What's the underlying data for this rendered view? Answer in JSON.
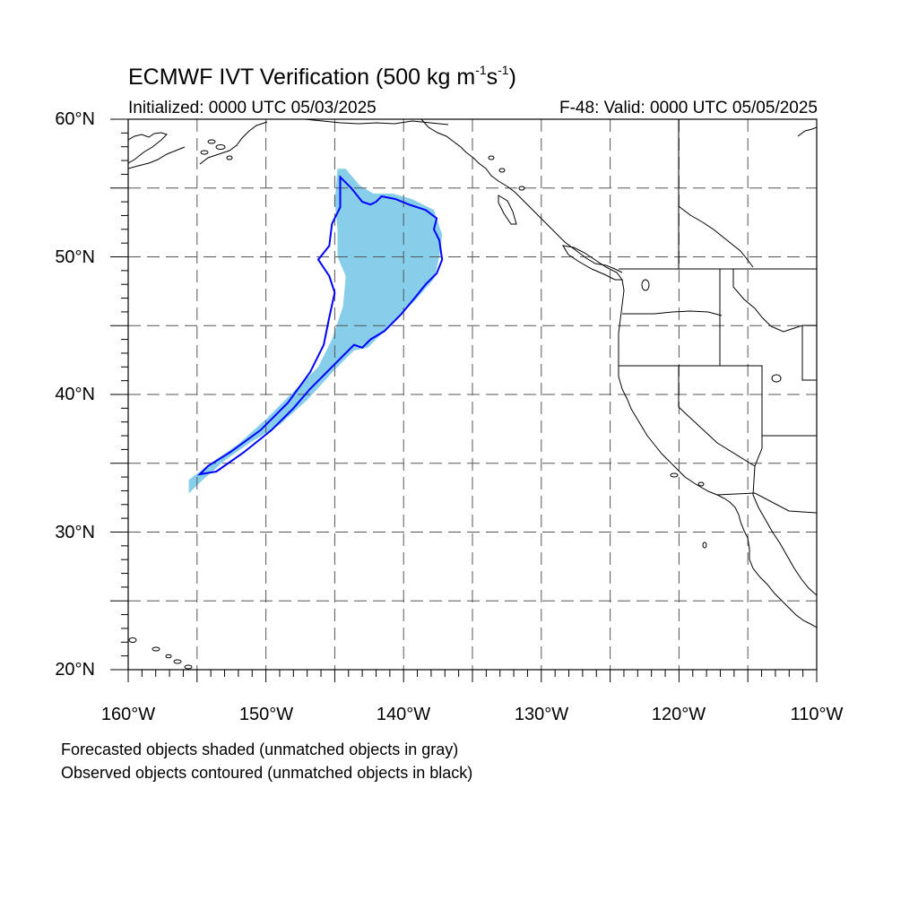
{
  "title": {
    "main": "ECMWF IVT Verification (500 kg m",
    "exp1": "-1",
    "mid": "s",
    "exp2": "-1",
    "close": ")"
  },
  "subtitle": {
    "left": "Initialized: 0000 UTC 05/03/2025",
    "right": "F-48: Valid: 0000 UTC 05/05/2025"
  },
  "map": {
    "projection": "lat-lon",
    "lon_range": [
      -160,
      -110
    ],
    "lat_range": [
      20,
      60
    ],
    "lat_labels": [
      "60°N",
      "50°N",
      "40°N",
      "30°N",
      "20°N"
    ],
    "lon_labels": [
      "160°W",
      "150°W",
      "140°W",
      "130°W",
      "120°W",
      "110°W"
    ],
    "gridlines": "dashed every 5°",
    "colors": {
      "forecast_fill": "#87ceeb",
      "observed_contour": "#0000ff",
      "coastline": "#000000",
      "grid": "#555555"
    },
    "forecast_object": {
      "label": "matched forecast object",
      "outline_lonlat": [
        [
          -144.8,
          56.4
        ],
        [
          -144.2,
          56.4
        ],
        [
          -143.2,
          55.2
        ],
        [
          -142.2,
          54.6
        ],
        [
          -140.8,
          54.6
        ],
        [
          -139.4,
          54.2
        ],
        [
          -137.8,
          53.4
        ],
        [
          -137.2,
          51.6
        ],
        [
          -137.4,
          50.0
        ],
        [
          -137.8,
          48.4
        ],
        [
          -139.0,
          47.0
        ],
        [
          -140.8,
          45.2
        ],
        [
          -142.6,
          43.4
        ],
        [
          -143.6,
          43.2
        ],
        [
          -145.0,
          41.8
        ],
        [
          -147.0,
          39.6
        ],
        [
          -149.0,
          37.8
        ],
        [
          -151.0,
          36.6
        ],
        [
          -153.0,
          35.2
        ],
        [
          -154.8,
          33.6
        ],
        [
          -155.6,
          32.8
        ],
        [
          -155.6,
          33.8
        ],
        [
          -154.0,
          35.0
        ],
        [
          -152.0,
          36.4
        ],
        [
          -150.0,
          38.2
        ],
        [
          -148.0,
          40.2
        ],
        [
          -146.2,
          42.0
        ],
        [
          -145.2,
          44.0
        ],
        [
          -144.4,
          46.4
        ],
        [
          -144.2,
          48.6
        ],
        [
          -144.8,
          50.0
        ],
        [
          -144.8,
          52.0
        ],
        [
          -145.0,
          54.0
        ],
        [
          -144.8,
          56.4
        ]
      ]
    },
    "observed_object": {
      "label": "matched observed object",
      "outline_lonlat": [
        [
          -144.6,
          55.8
        ],
        [
          -143.8,
          55.0
        ],
        [
          -143.0,
          54.0
        ],
        [
          -142.4,
          53.8
        ],
        [
          -142.0,
          54.0
        ],
        [
          -141.6,
          54.4
        ],
        [
          -140.6,
          54.2
        ],
        [
          -139.6,
          53.8
        ],
        [
          -138.4,
          53.4
        ],
        [
          -137.6,
          52.8
        ],
        [
          -137.8,
          52.0
        ],
        [
          -137.4,
          51.2
        ],
        [
          -137.2,
          49.8
        ],
        [
          -137.6,
          48.8
        ],
        [
          -138.4,
          48.0
        ],
        [
          -139.2,
          47.0
        ],
        [
          -140.2,
          45.8
        ],
        [
          -141.4,
          44.6
        ],
        [
          -142.4,
          44.0
        ],
        [
          -143.0,
          43.4
        ],
        [
          -143.6,
          43.6
        ],
        [
          -144.6,
          42.6
        ],
        [
          -145.6,
          41.6
        ],
        [
          -146.8,
          40.4
        ],
        [
          -148.0,
          39.0
        ],
        [
          -149.6,
          37.4
        ],
        [
          -151.6,
          35.8
        ],
        [
          -153.6,
          34.4
        ],
        [
          -154.8,
          34.2
        ],
        [
          -154.2,
          34.8
        ],
        [
          -152.6,
          35.8
        ],
        [
          -150.4,
          37.4
        ],
        [
          -148.4,
          39.4
        ],
        [
          -146.8,
          41.6
        ],
        [
          -145.8,
          43.6
        ],
        [
          -145.4,
          45.6
        ],
        [
          -145.0,
          47.4
        ],
        [
          -145.4,
          48.6
        ],
        [
          -146.2,
          49.8
        ],
        [
          -145.4,
          50.8
        ],
        [
          -145.2,
          52.4
        ],
        [
          -144.6,
          53.6
        ],
        [
          -144.6,
          55.8
        ]
      ]
    }
  },
  "footer": {
    "line1": "Forecasted objects shaded (unmatched objects in gray)",
    "line2": "Observed objects contoured (unmatched objects in black)"
  }
}
